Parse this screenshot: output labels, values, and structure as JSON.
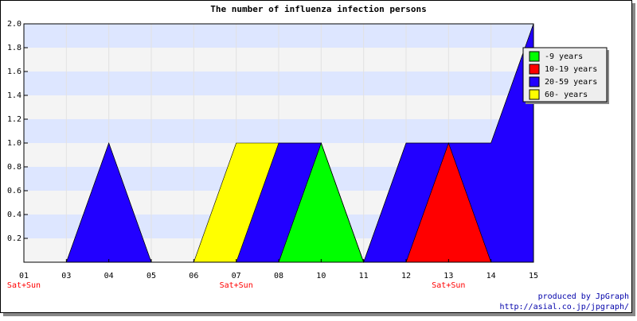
{
  "chart_data": {
    "type": "area",
    "title": "The number of influenza infection persons",
    "categories": [
      "01",
      "03",
      "04",
      "05",
      "06",
      "07",
      "08",
      "10",
      "11",
      "12",
      "13",
      "14",
      "15"
    ],
    "sublabels": [
      "Sat+Sun",
      null,
      null,
      null,
      null,
      "Sat+Sun",
      null,
      null,
      null,
      null,
      "Sat+Sun",
      null,
      null
    ],
    "stacked": true,
    "series": [
      {
        "name": "-9 years",
        "color": "#00ff00",
        "values": [
          0,
          0,
          0,
          0,
          0,
          0,
          0,
          1,
          0,
          0,
          0,
          0,
          0
        ]
      },
      {
        "name": "10-19 years",
        "color": "#ff0000",
        "values": [
          0,
          0,
          0,
          0,
          0,
          0,
          0,
          0,
          0,
          0,
          1,
          0,
          0
        ]
      },
      {
        "name": "20-59 years",
        "color": "#2200ff",
        "values": [
          0,
          0,
          1,
          0,
          0,
          0,
          1,
          0,
          0,
          1,
          0,
          1,
          2
        ]
      },
      {
        "name": "60- years",
        "color": "#ffff00",
        "values": [
          0,
          0,
          0,
          0,
          0,
          1,
          0,
          0,
          0,
          0,
          0,
          0,
          0
        ]
      }
    ],
    "ylim": [
      0,
      2
    ],
    "yticks": [
      0.2,
      0.4,
      0.6,
      0.8,
      {
        "value": 1,
        "label": "1.0"
      },
      1.2,
      1.4,
      1.6,
      1.8,
      {
        "value": 2,
        "label": "2.0"
      }
    ],
    "grid": true,
    "legend": "top-right",
    "footer": [
      "produced by JpGraph",
      "http://asial.co.jp/jpgraph/"
    ]
  }
}
